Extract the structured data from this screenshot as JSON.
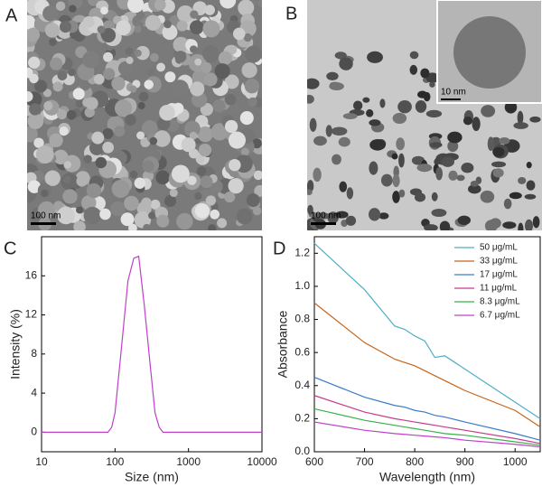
{
  "figure": {
    "panel_labels": [
      "A",
      "B",
      "C",
      "D"
    ],
    "scale_bars": [
      "100 nm",
      "100 nm",
      "10 nm"
    ]
  },
  "chart_data": [
    {
      "type": "line",
      "x": [
        10,
        80,
        90,
        100,
        120,
        150,
        180,
        210,
        250,
        300,
        350,
        400,
        450,
        10000
      ],
      "values": [
        0,
        0,
        0.5,
        2,
        8,
        15.5,
        17.8,
        18,
        13,
        7,
        2,
        0.5,
        0,
        0
      ],
      "color": "#c040c8",
      "xlog": true,
      "xlim": [
        10,
        10000
      ],
      "xticks": [
        10,
        100,
        1000,
        10000
      ],
      "ylim": [
        -2,
        20
      ],
      "yticks": [
        0,
        4,
        8,
        12,
        16
      ],
      "xlabel": "Size (nm)",
      "ylabel": "Intensity (%)"
    },
    {
      "type": "line",
      "x": [
        600,
        700,
        760,
        780,
        800,
        820,
        840,
        860,
        900,
        1000,
        1050
      ],
      "series": [
        {
          "name": "50 μg/mL",
          "color": "#4eaec6",
          "values": [
            1.26,
            0.98,
            0.76,
            0.74,
            0.7,
            0.67,
            0.57,
            0.58,
            0.5,
            0.3,
            0.2
          ]
        },
        {
          "name": "33 μg/mL",
          "color": "#c8641a",
          "values": [
            0.9,
            0.66,
            0.56,
            0.54,
            0.52,
            0.49,
            0.46,
            0.43,
            0.37,
            0.25,
            0.15
          ]
        },
        {
          "name": "17 μg/mL",
          "color": "#3a7bc8",
          "values": [
            0.45,
            0.33,
            0.28,
            0.27,
            0.25,
            0.24,
            0.22,
            0.21,
            0.18,
            0.11,
            0.07
          ]
        },
        {
          "name": "11 μg/mL",
          "color": "#c83a8c",
          "values": [
            0.34,
            0.24,
            0.2,
            0.19,
            0.18,
            0.17,
            0.16,
            0.15,
            0.13,
            0.08,
            0.05
          ]
        },
        {
          "name": "8.3 μg/mL",
          "color": "#3ab04a",
          "values": [
            0.26,
            0.19,
            0.16,
            0.15,
            0.14,
            0.13,
            0.12,
            0.11,
            0.1,
            0.06,
            0.04
          ]
        },
        {
          "name": "6.7 μg/mL",
          "color": "#c040c8",
          "values": [
            0.18,
            0.13,
            0.11,
            0.105,
            0.1,
            0.095,
            0.09,
            0.085,
            0.07,
            0.045,
            0.03
          ]
        }
      ],
      "xlim": [
        600,
        1050
      ],
      "xticks": [
        600,
        700,
        800,
        900,
        1000
      ],
      "ylim": [
        0,
        1.3
      ],
      "yticks": [
        {
          "value": 0,
          "label": "0.0"
        },
        0.2,
        0.4,
        0.6,
        0.8,
        {
          "value": 1,
          "label": "1.0"
        },
        1.2
      ],
      "xlabel": "Wavelength (nm)",
      "ylabel": "Absorbance",
      "legend": "upper right"
    }
  ]
}
